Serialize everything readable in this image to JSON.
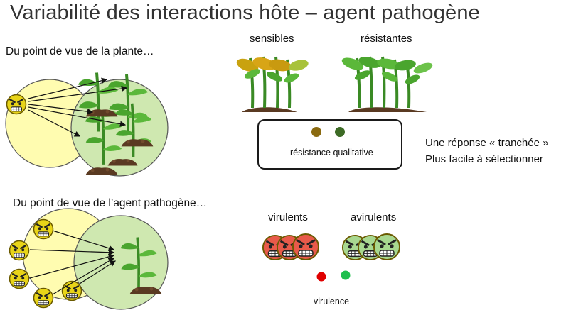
{
  "title": "Variabilité des interactions hôte – agent pathogène",
  "plant_section": {
    "heading": "Du point de vue de la plante…",
    "labels": {
      "susceptible": "sensibles",
      "resistant": "résistantes"
    },
    "box_caption": "résistance qualitative",
    "notes": [
      "Une réponse « tranchée »",
      "Plus facile à sélectionner"
    ]
  },
  "pathogen_section": {
    "heading": "Du point de vue de l’agent pathogène…",
    "labels": {
      "virulent": "virulents",
      "avirulent": "avirulents"
    },
    "caption": "virulence"
  },
  "colors": {
    "plant_circle": "#fffcb0",
    "pathogen_circle": "#cfe8b0",
    "dot_brown": "#8a6a10",
    "dot_green": "#3d6b25",
    "dot_red": "#e00000",
    "dot_green_bright": "#1fbf4d",
    "virulent_face": "#e85a4a",
    "avirulent_face": "#a8d890"
  },
  "icons": [
    "angry-face-icon",
    "plant-icon",
    "soil-icon",
    "arrow-icon"
  ]
}
